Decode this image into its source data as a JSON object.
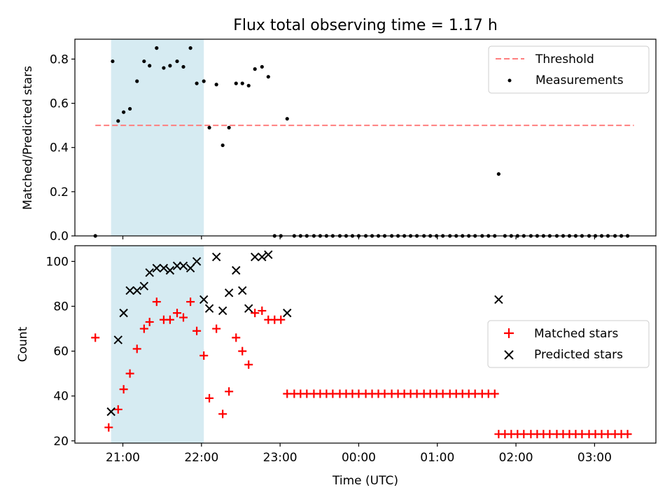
{
  "chart_data": {
    "title": "Flux total observing time = 1.17 h",
    "xlabel": "Time (UTC)",
    "x_ticks": [
      "21:00",
      "22:00",
      "23:00",
      "00:00",
      "01:00",
      "02:00",
      "03:00"
    ],
    "x_tick_hours": [
      21,
      22,
      23,
      24,
      25,
      26,
      27
    ],
    "xlim_hours": [
      20.39,
      27.78
    ],
    "shaded_span_hours": [
      20.85,
      22.03
    ],
    "shade_color": "#add8e6",
    "panels": [
      {
        "type": "scatter",
        "ylabel": "Matched/Predicted stars",
        "ylim": [
          0,
          0.89
        ],
        "y_ticks": [
          0.0,
          0.2,
          0.4,
          0.6,
          0.8
        ],
        "y_tick_labels": [
          "0.0",
          "0.2",
          "0.4",
          "0.6",
          "0.8"
        ],
        "legend_position": "upper-right",
        "threshold": {
          "name": "Threshold",
          "value": 0.5,
          "x_range_hours": [
            20.65,
            27.5
          ],
          "color": "#ff7f7f"
        },
        "series": [
          {
            "name": "Measurements",
            "marker": "dot",
            "color": "#000000",
            "x": [
              20.65,
              20.87,
              20.94,
              21.01,
              21.09,
              21.18,
              21.27,
              21.34,
              21.43,
              21.52,
              21.6,
              21.69,
              21.77,
              21.86,
              21.94,
              22.03,
              22.1,
              22.19,
              22.27,
              22.35,
              22.44,
              22.52,
              22.6,
              22.68,
              22.77,
              22.85,
              22.93,
              23.01,
              23.09,
              23.18,
              23.26,
              23.34,
              23.43,
              23.51,
              23.59,
              23.67,
              23.76,
              23.84,
              23.92,
              24.0,
              24.09,
              24.17,
              24.25,
              24.33,
              24.42,
              24.5,
              24.58,
              24.66,
              24.74,
              24.83,
              24.91,
              24.99,
              25.07,
              25.16,
              25.24,
              25.32,
              25.4,
              25.48,
              25.57,
              25.65,
              25.73,
              25.78,
              25.86,
              25.94,
              26.02,
              26.1,
              26.19,
              26.27,
              26.35,
              26.43,
              26.52,
              26.6,
              26.68,
              26.76,
              26.84,
              26.93,
              27.01,
              27.09,
              27.17,
              27.26,
              27.34,
              27.42
            ],
            "y": [
              0.0,
              0.79,
              0.52,
              0.56,
              0.575,
              0.7,
              0.79,
              0.77,
              0.85,
              0.76,
              0.77,
              0.79,
              0.765,
              0.85,
              0.69,
              0.7,
              0.49,
              0.685,
              0.41,
              0.49,
              0.69,
              0.69,
              0.68,
              0.755,
              0.765,
              0.72,
              0.0,
              0.0,
              0.53,
              0.0,
              0.0,
              0.0,
              0.0,
              0.0,
              0.0,
              0.0,
              0.0,
              0.0,
              0.0,
              0.0,
              0.0,
              0.0,
              0.0,
              0.0,
              0.0,
              0.0,
              0.0,
              0.0,
              0.0,
              0.0,
              0.0,
              0.0,
              0.0,
              0.0,
              0.0,
              0.0,
              0.0,
              0.0,
              0.0,
              0.0,
              0.0,
              0.28,
              0.0,
              0.0,
              0.0,
              0.0,
              0.0,
              0.0,
              0.0,
              0.0,
              0.0,
              0.0,
              0.0,
              0.0,
              0.0,
              0.0,
              0.0,
              0.0,
              0.0,
              0.0,
              0.0,
              0.0
            ]
          }
        ]
      },
      {
        "type": "scatter",
        "ylabel": "Count",
        "ylim": [
          19,
          107
        ],
        "y_ticks": [
          20,
          40,
          60,
          80,
          100
        ],
        "y_tick_labels": [
          "20",
          "40",
          "60",
          "80",
          "100"
        ],
        "legend_position": "center-right",
        "series": [
          {
            "name": "Matched stars",
            "marker": "plus",
            "color": "#ff0000",
            "x": [
              20.65,
              20.82,
              20.94,
              21.01,
              21.09,
              21.18,
              21.27,
              21.34,
              21.43,
              21.52,
              21.6,
              21.69,
              21.77,
              21.86,
              21.94,
              22.03,
              22.1,
              22.19,
              22.27,
              22.35,
              22.44,
              22.52,
              22.6,
              22.68,
              22.77,
              22.85,
              22.93,
              23.01,
              23.09,
              23.18,
              23.26,
              23.34,
              23.43,
              23.51,
              23.59,
              23.67,
              23.76,
              23.84,
              23.92,
              24.0,
              24.09,
              24.17,
              24.25,
              24.33,
              24.42,
              24.5,
              24.58,
              24.66,
              24.74,
              24.83,
              24.91,
              24.99,
              25.07,
              25.16,
              25.24,
              25.32,
              25.4,
              25.48,
              25.57,
              25.65,
              25.73,
              25.78,
              25.86,
              25.94,
              26.02,
              26.1,
              26.19,
              26.27,
              26.35,
              26.43,
              26.52,
              26.6,
              26.68,
              26.76,
              26.84,
              26.93,
              27.01,
              27.09,
              27.17,
              27.26,
              27.34,
              27.42
            ],
            "y": [
              66,
              26,
              34,
              43,
              50,
              61,
              70,
              73,
              82,
              74,
              74,
              77,
              75,
              82,
              69,
              58,
              39,
              70,
              32,
              42,
              66,
              60,
              54,
              77,
              78,
              74,
              74,
              74,
              41,
              41,
              41,
              41,
              41,
              41,
              41,
              41,
              41,
              41,
              41,
              41,
              41,
              41,
              41,
              41,
              41,
              41,
              41,
              41,
              41,
              41,
              41,
              41,
              41,
              41,
              41,
              41,
              41,
              41,
              41,
              41,
              41,
              23,
              23,
              23,
              23,
              23,
              23,
              23,
              23,
              23,
              23,
              23,
              23,
              23,
              23,
              23,
              23,
              23,
              23,
              23,
              23,
              23
            ]
          },
          {
            "name": "Predicted stars",
            "marker": "x",
            "color": "#000000",
            "x": [
              20.85,
              20.94,
              21.01,
              21.09,
              21.18,
              21.27,
              21.34,
              21.43,
              21.52,
              21.6,
              21.69,
              21.77,
              21.86,
              21.94,
              22.03,
              22.1,
              22.19,
              22.27,
              22.35,
              22.44,
              22.52,
              22.6,
              22.68,
              22.77,
              22.85,
              23.09,
              25.78
            ],
            "y": [
              33,
              65,
              77,
              87,
              87,
              89,
              95,
              97,
              97,
              96,
              98,
              98,
              97,
              100,
              83,
              79,
              102,
              78,
              86,
              96,
              87,
              79,
              102,
              102,
              103,
              77,
              83
            ]
          }
        ]
      }
    ]
  }
}
